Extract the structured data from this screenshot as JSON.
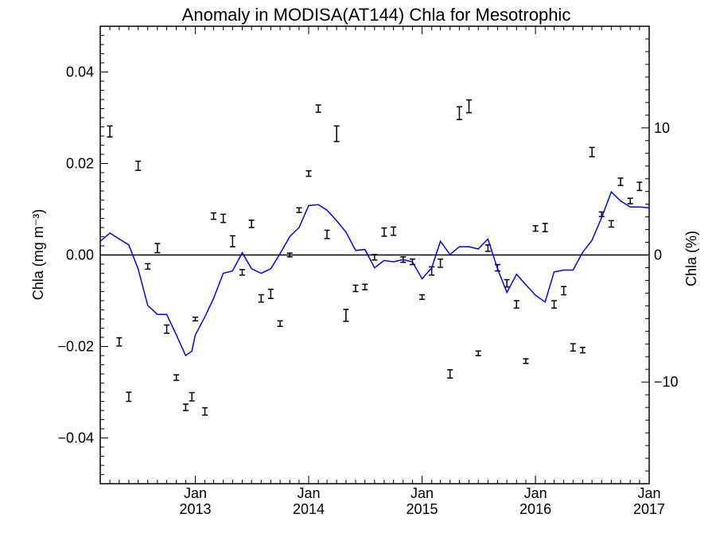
{
  "chart_data": {
    "type": "line",
    "title": "Anomaly in MODISA(AT144) Chla for Mesotrophic",
    "xlabel": "",
    "ylabel": "Chla (mg m⁻³)",
    "y2label": "Chla (%)",
    "ylim": [
      -0.05,
      0.05
    ],
    "y2lim": [
      -18,
      18
    ],
    "xlim": [
      "2012-03-01",
      "2017-01-01"
    ],
    "yticks": [
      {
        "value": 0.04,
        "label": "0.04"
      },
      {
        "value": 0.02,
        "label": "0.02"
      },
      {
        "value": 0.0,
        "label": "0.00"
      },
      {
        "value": -0.02,
        "label": "−0.02"
      },
      {
        "value": -0.04,
        "label": "−0.04"
      }
    ],
    "y2ticks": [
      {
        "value": 10,
        "label": "10"
      },
      {
        "value": 0,
        "label": "0"
      },
      {
        "value": -10,
        "label": "−10"
      }
    ],
    "xticks": [
      {
        "date": "2013-01-01",
        "line1": "Jan",
        "line2": "2013"
      },
      {
        "date": "2014-01-01",
        "line1": "Jan",
        "line2": "2014"
      },
      {
        "date": "2015-01-01",
        "line1": "Jan",
        "line2": "2015"
      },
      {
        "date": "2016-01-01",
        "line1": "Jan",
        "line2": "2016"
      },
      {
        "date": "2017-01-01",
        "line1": "Jan",
        "line2": "2017"
      }
    ],
    "grid": false,
    "zero_line": true,
    "series": [
      {
        "style": "error-bars",
        "color": "#000000",
        "x": [
          "2012-04-01",
          "2012-05-01",
          "2012-06-01",
          "2012-07-01",
          "2012-08-01",
          "2012-09-01",
          "2012-10-01",
          "2012-11-01",
          "2012-12-01",
          "2012-12-21",
          "2013-01-01",
          "2013-02-01",
          "2013-03-01",
          "2013-04-01",
          "2013-05-01",
          "2013-06-01",
          "2013-07-01",
          "2013-08-01",
          "2013-09-01",
          "2013-10-01",
          "2013-11-01",
          "2013-12-01",
          "2014-01-01",
          "2014-02-01",
          "2014-03-01",
          "2014-04-01",
          "2014-05-01",
          "2014-06-01",
          "2014-07-01",
          "2014-08-01",
          "2014-09-01",
          "2014-10-01",
          "2014-11-01",
          "2014-12-01",
          "2015-01-01",
          "2015-02-01",
          "2015-03-01",
          "2015-04-01",
          "2015-05-01",
          "2015-06-01",
          "2015-07-01",
          "2015-08-01",
          "2015-09-01",
          "2015-10-01",
          "2015-11-01",
          "2015-12-01",
          "2016-01-01",
          "2016-02-01",
          "2016-03-01",
          "2016-04-01",
          "2016-05-01",
          "2016-06-01",
          "2016-07-01",
          "2016-08-01",
          "2016-09-01",
          "2016-10-01",
          "2016-11-01",
          "2016-12-01"
        ],
        "y": [
          0.027,
          -0.019,
          -0.031,
          0.0195,
          -0.0025,
          0.0015,
          -0.0162,
          -0.0268,
          -0.0333,
          -0.031,
          -0.014,
          -0.0342,
          0.0085,
          0.008,
          0.003,
          -0.0038,
          0.0068,
          -0.0095,
          -0.0085,
          -0.015,
          0.0,
          0.0098,
          0.0178,
          0.032,
          0.0045,
          0.0265,
          -0.0132,
          -0.0073,
          -0.007,
          -0.0005,
          0.005,
          0.0052,
          -0.001,
          -0.0015,
          -0.0092,
          -0.0035,
          -0.0018,
          -0.026,
          0.031,
          0.0325,
          -0.0215,
          0.0015,
          -0.0028,
          -0.0062,
          -0.0108,
          -0.0232,
          0.0058,
          0.006,
          -0.0108,
          -0.0078,
          -0.0202,
          -0.0208,
          0.0225,
          0.0089,
          0.0068,
          0.016,
          0.0118,
          0.015
        ],
        "err": [
          0.0012,
          0.0009,
          0.001,
          0.001,
          0.0006,
          0.001,
          0.0009,
          0.0006,
          0.0007,
          0.0009,
          0.0004,
          0.0008,
          0.0007,
          0.0009,
          0.0012,
          0.0006,
          0.0008,
          0.0008,
          0.001,
          0.0006,
          0.0004,
          0.0005,
          0.0006,
          0.0008,
          0.0009,
          0.0017,
          0.0013,
          0.0007,
          0.0006,
          0.0006,
          0.0009,
          0.0009,
          0.0006,
          0.0006,
          0.0005,
          0.0009,
          0.0009,
          0.0009,
          0.0014,
          0.0014,
          0.0005,
          0.0007,
          0.0007,
          0.0008,
          0.0008,
          0.0005,
          0.0006,
          0.0009,
          0.0008,
          0.0009,
          0.0008,
          0.0006,
          0.001,
          0.0005,
          0.0007,
          0.0008,
          0.0006,
          0.0009
        ]
      },
      {
        "style": "line",
        "color": "#0000ff",
        "x": [
          "2012-03-01",
          "2012-04-01",
          "2012-05-01",
          "2012-06-01",
          "2012-07-01",
          "2012-08-01",
          "2012-09-01",
          "2012-10-01",
          "2012-11-01",
          "2012-12-01",
          "2012-12-21",
          "2013-01-01",
          "2013-02-01",
          "2013-03-01",
          "2013-04-01",
          "2013-05-01",
          "2013-06-01",
          "2013-07-01",
          "2013-08-01",
          "2013-09-01",
          "2013-10-01",
          "2013-11-01",
          "2013-12-01",
          "2014-01-01",
          "2014-02-01",
          "2014-03-01",
          "2014-04-01",
          "2014-05-01",
          "2014-06-01",
          "2014-07-01",
          "2014-08-01",
          "2014-09-01",
          "2014-10-01",
          "2014-11-01",
          "2014-12-01",
          "2015-01-01",
          "2015-02-01",
          "2015-03-01",
          "2015-04-01",
          "2015-05-01",
          "2015-06-01",
          "2015-07-01",
          "2015-08-01",
          "2015-09-01",
          "2015-10-01",
          "2015-11-01",
          "2015-12-01",
          "2016-01-01",
          "2016-02-01",
          "2016-03-01",
          "2016-04-01",
          "2016-05-01",
          "2016-06-01",
          "2016-07-01",
          "2016-08-01",
          "2016-09-01",
          "2016-10-01",
          "2016-11-01",
          "2016-12-01",
          "2017-01-01"
        ],
        "y": [
          0.003,
          0.0048,
          0.0035,
          0.0022,
          -0.003,
          -0.011,
          -0.013,
          -0.013,
          -0.0175,
          -0.022,
          -0.021,
          -0.0175,
          -0.0135,
          -0.0095,
          -0.004,
          -0.0035,
          0.0005,
          -0.003,
          -0.004,
          -0.003,
          0.0003,
          0.004,
          0.006,
          0.0108,
          0.011,
          0.0098,
          0.0075,
          0.005,
          0.001,
          0.0012,
          -0.0028,
          -0.0012,
          -0.0015,
          -0.001,
          -0.0015,
          -0.0052,
          -0.0028,
          0.003,
          0.0001,
          0.0018,
          0.0018,
          0.0013,
          0.0035,
          -0.003,
          -0.0082,
          -0.0042,
          -0.0065,
          -0.0088,
          -0.0103,
          -0.0037,
          -0.0033,
          -0.0033,
          0.0006,
          0.0032,
          0.0082,
          0.0138,
          0.0118,
          0.0105,
          0.0105,
          0.0103
        ]
      }
    ]
  }
}
